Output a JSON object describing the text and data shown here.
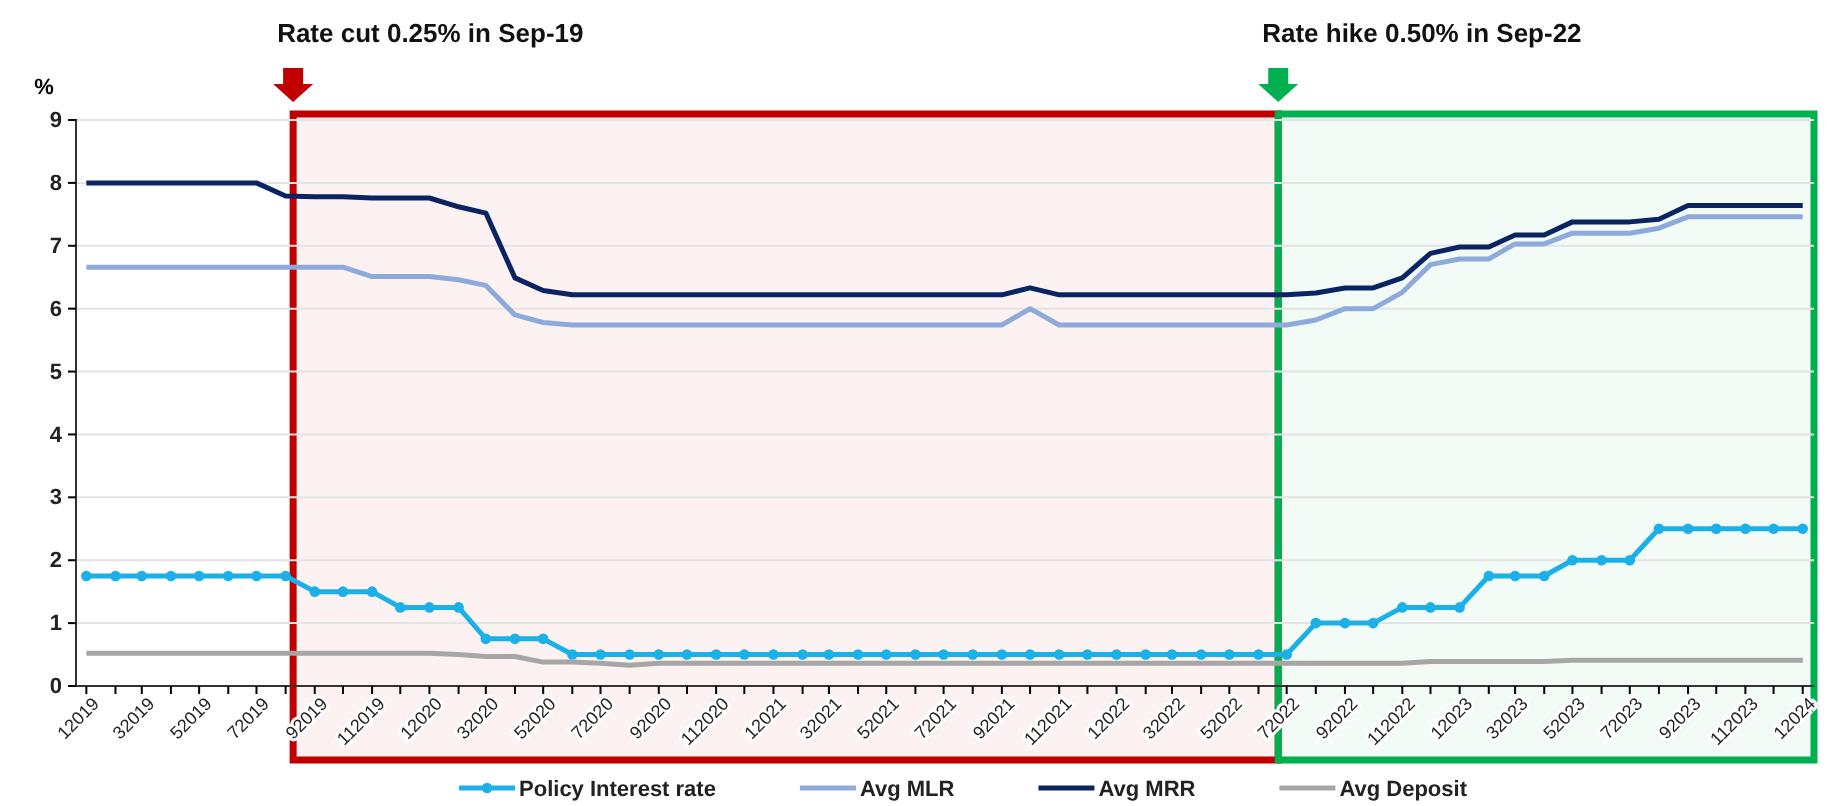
{
  "chart_data": {
    "type": "line",
    "ylabel": "%",
    "x": [
      "2019-01",
      "2019-02",
      "2019-03",
      "2019-04",
      "2019-05",
      "2019-06",
      "2019-07",
      "2019-08",
      "2019-09",
      "2019-10",
      "2019-11",
      "2019-12",
      "2020-01",
      "2020-02",
      "2020-03",
      "2020-04",
      "2020-05",
      "2020-06",
      "2020-07",
      "2020-08",
      "2020-09",
      "2020-10",
      "2020-11",
      "2020-12",
      "2021-01",
      "2021-02",
      "2021-03",
      "2021-04",
      "2021-05",
      "2021-06",
      "2021-07",
      "2021-08",
      "2021-09",
      "2021-10",
      "2021-11",
      "2021-12",
      "2022-01",
      "2022-02",
      "2022-03",
      "2022-04",
      "2022-05",
      "2022-06",
      "2022-07",
      "2022-08",
      "2022-09",
      "2022-10",
      "2022-11",
      "2022-12",
      "2023-01",
      "2023-02",
      "2023-03",
      "2023-04",
      "2023-05",
      "2023-06",
      "2023-07",
      "2023-08",
      "2023-09",
      "2023-10",
      "2023-11",
      "2023-12",
      "2024-01"
    ],
    "series": [
      {
        "name": "Policy Interest rate",
        "color": "#1cb0e8",
        "marker": "circle",
        "values": [
          1.75,
          1.75,
          1.75,
          1.75,
          1.75,
          1.75,
          1.75,
          1.75,
          1.5,
          1.5,
          1.5,
          1.25,
          1.25,
          1.25,
          0.75,
          0.75,
          0.75,
          0.5,
          0.5,
          0.5,
          0.5,
          0.5,
          0.5,
          0.5,
          0.5,
          0.5,
          0.5,
          0.5,
          0.5,
          0.5,
          0.5,
          0.5,
          0.5,
          0.5,
          0.5,
          0.5,
          0.5,
          0.5,
          0.5,
          0.5,
          0.5,
          0.5,
          0.5,
          1,
          1,
          1,
          1.25,
          1.25,
          1.25,
          1.75,
          1.75,
          1.75,
          2,
          2,
          2,
          2.5,
          2.5,
          2.5,
          2.5,
          2.5,
          2.5
        ]
      },
      {
        "name": "Avg MLR",
        "color": "#8eaadb",
        "marker": "none",
        "values": [
          6.66,
          6.66,
          6.66,
          6.66,
          6.66,
          6.66,
          6.66,
          6.66,
          6.66,
          6.66,
          6.51,
          6.51,
          6.51,
          6.46,
          6.37,
          5.9,
          5.78,
          5.74,
          5.74,
          5.74,
          5.74,
          5.74,
          5.74,
          5.74,
          5.74,
          5.74,
          5.74,
          5.74,
          5.74,
          5.74,
          5.74,
          5.74,
          5.74,
          6,
          5.74,
          5.74,
          5.74,
          5.74,
          5.74,
          5.74,
          5.74,
          5.74,
          5.74,
          5.82,
          6,
          6,
          6.26,
          6.7,
          6.79,
          6.79,
          7.03,
          7.03,
          7.2,
          7.2,
          7.2,
          7.28,
          7.46,
          7.46,
          7.46,
          7.46,
          7.46
        ]
      },
      {
        "name": "Avg MRR",
        "color": "#0a2463",
        "marker": "none",
        "values": [
          8,
          8,
          8,
          8,
          8,
          8,
          8,
          7.79,
          7.78,
          7.78,
          7.76,
          7.76,
          7.76,
          7.62,
          7.52,
          6.49,
          6.29,
          6.22,
          6.22,
          6.22,
          6.22,
          6.22,
          6.22,
          6.22,
          6.22,
          6.22,
          6.22,
          6.22,
          6.22,
          6.22,
          6.22,
          6.22,
          6.22,
          6.33,
          6.22,
          6.22,
          6.22,
          6.22,
          6.22,
          6.22,
          6.22,
          6.22,
          6.22,
          6.25,
          6.33,
          6.33,
          6.49,
          6.88,
          6.98,
          6.98,
          7.17,
          7.17,
          7.38,
          7.38,
          7.38,
          7.42,
          7.64,
          7.64,
          7.64,
          7.64,
          7.64
        ]
      },
      {
        "name": "Avg Deposit",
        "color": "#a6a6a6",
        "marker": "none",
        "values": [
          0.52,
          0.52,
          0.52,
          0.52,
          0.52,
          0.52,
          0.52,
          0.52,
          0.52,
          0.52,
          0.52,
          0.52,
          0.52,
          0.5,
          0.47,
          0.47,
          0.38,
          0.38,
          0.36,
          0.33,
          0.36,
          0.36,
          0.36,
          0.36,
          0.36,
          0.36,
          0.36,
          0.36,
          0.36,
          0.36,
          0.36,
          0.36,
          0.36,
          0.36,
          0.36,
          0.36,
          0.36,
          0.36,
          0.36,
          0.36,
          0.36,
          0.36,
          0.36,
          0.36,
          0.36,
          0.36,
          0.36,
          0.39,
          0.39,
          0.39,
          0.39,
          0.39,
          0.41,
          0.41,
          0.41,
          0.41,
          0.41,
          0.41,
          0.41,
          0.41,
          0.41
        ]
      }
    ],
    "ylim": [
      0,
      9
    ],
    "yticks": [
      0,
      1,
      2,
      3,
      4,
      5,
      6,
      7,
      8,
      9
    ],
    "xlim": [
      "2018-12-21",
      "2024-01-13"
    ],
    "xticks": [
      {
        "value": "2019-01",
        "label": "12019"
      },
      {
        "value": "2019-02",
        "label": null
      },
      {
        "value": "2019-03",
        "label": "32019"
      },
      {
        "value": "2019-04",
        "label": null
      },
      {
        "value": "2019-05",
        "label": "52019"
      },
      {
        "value": "2019-06",
        "label": null
      },
      {
        "value": "2019-07",
        "label": "72019"
      },
      {
        "value": "2019-08",
        "label": null
      },
      {
        "value": "2019-09",
        "label": "92019"
      },
      {
        "value": "2019-10",
        "label": null
      },
      {
        "value": "2019-11",
        "label": "112019"
      },
      {
        "value": "2019-12",
        "label": null
      },
      {
        "value": "2020-01",
        "label": "12020"
      },
      {
        "value": "2020-02",
        "label": null
      },
      {
        "value": "2020-03",
        "label": "32020"
      },
      {
        "value": "2020-04",
        "label": null
      },
      {
        "value": "2020-05",
        "label": "52020"
      },
      {
        "value": "2020-06",
        "label": null
      },
      {
        "value": "2020-07",
        "label": "72020"
      },
      {
        "value": "2020-08",
        "label": null
      },
      {
        "value": "2020-09",
        "label": "92020"
      },
      {
        "value": "2020-10",
        "label": null
      },
      {
        "value": "2020-11",
        "label": "112020"
      },
      {
        "value": "2020-12",
        "label": null
      },
      {
        "value": "2021-01",
        "label": "12021"
      },
      {
        "value": "2021-02",
        "label": null
      },
      {
        "value": "2021-03",
        "label": "32021"
      },
      {
        "value": "2021-04",
        "label": null
      },
      {
        "value": "2021-05",
        "label": "52021"
      },
      {
        "value": "2021-06",
        "label": null
      },
      {
        "value": "2021-07",
        "label": "72021"
      },
      {
        "value": "2021-08",
        "label": null
      },
      {
        "value": "2021-09",
        "label": "92021"
      },
      {
        "value": "2021-10",
        "label": null
      },
      {
        "value": "2021-11",
        "label": "112021"
      },
      {
        "value": "2021-12",
        "label": null
      },
      {
        "value": "2022-01",
        "label": "12022"
      },
      {
        "value": "2022-02",
        "label": null
      },
      {
        "value": "2022-03",
        "label": "32022"
      },
      {
        "value": "2022-04",
        "label": null
      },
      {
        "value": "2022-05",
        "label": "52022"
      },
      {
        "value": "2022-06",
        "label": null
      },
      {
        "value": "2022-07",
        "label": "72022"
      },
      {
        "value": "2022-08",
        "label": null
      },
      {
        "value": "2022-09",
        "label": "92022"
      },
      {
        "value": "2022-10",
        "label": null
      },
      {
        "value": "2022-11",
        "label": "112022"
      },
      {
        "value": "2022-12",
        "label": null
      },
      {
        "value": "2023-01",
        "label": "12023"
      },
      {
        "value": "2023-02",
        "label": null
      },
      {
        "value": "2023-03",
        "label": "32023"
      },
      {
        "value": "2023-04",
        "label": null
      },
      {
        "value": "2023-05",
        "label": "52023"
      },
      {
        "value": "2023-06",
        "label": null
      },
      {
        "value": "2023-07",
        "label": "72023"
      },
      {
        "value": "2023-08",
        "label": null
      },
      {
        "value": "2023-09",
        "label": "92023"
      },
      {
        "value": "2023-10",
        "label": null
      },
      {
        "value": "2023-11",
        "label": "112023"
      },
      {
        "value": "2023-12",
        "label": null
      },
      {
        "value": "2024-01",
        "label": "12024"
      }
    ],
    "bands": [
      {
        "axis": "x",
        "from": "2019-08-09",
        "to": "2022-06-22",
        "label": "Rate cut 0.25% in Sep-19",
        "color": "#c00000"
      },
      {
        "axis": "x",
        "from": "2022-06-22",
        "to": "2024-01-13",
        "label": "Rate hike 0.50% in Sep-22",
        "color": "#00b050"
      }
    ],
    "grid": "y",
    "legend": "bottom",
    "line_style": "solid"
  }
}
